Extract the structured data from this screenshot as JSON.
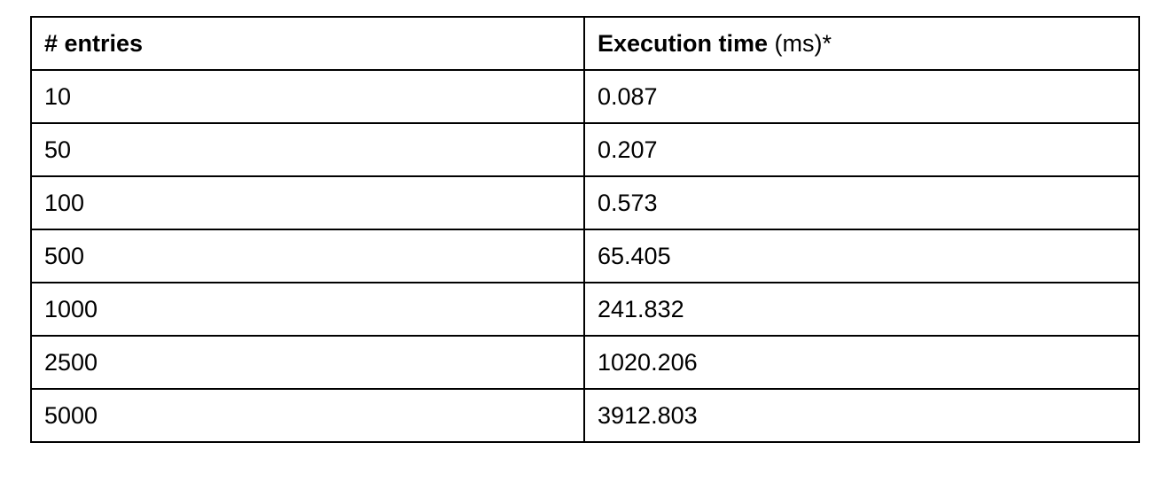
{
  "table": {
    "headers": {
      "entries": "# entries",
      "exec_bold": "Execution time",
      "exec_suffix": " (ms)*"
    },
    "rows": [
      {
        "entries": "10",
        "time": "0.087"
      },
      {
        "entries": "50",
        "time": "0.207"
      },
      {
        "entries": "100",
        "time": "0.573"
      },
      {
        "entries": "500",
        "time": "65.405"
      },
      {
        "entries": "1000",
        "time": "241.832"
      },
      {
        "entries": "2500",
        "time": "1020.206"
      },
      {
        "entries": "5000",
        "time": "3912.803"
      }
    ]
  }
}
